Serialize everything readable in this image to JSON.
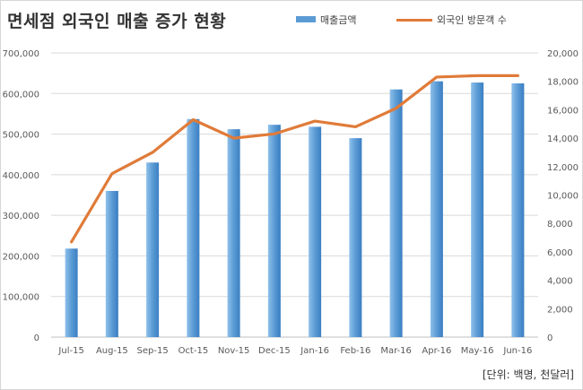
{
  "title": "면세점 외국인 매출 증가 현황",
  "unit_note": "[단위: 백명, 천달러]",
  "legend": {
    "bar_label": "매출금액",
    "line_label": "외국인 방문객 수"
  },
  "colors": {
    "bar": "#5b9bd5",
    "bar_light": "#8ec0ea",
    "bar_dark": "#3a7fc2",
    "line": "#e07b39",
    "grid": "#d9d9d9",
    "axis": "#bfbfbf"
  },
  "chart_data": {
    "type": "bar",
    "categories": [
      "Jul-15",
      "Aug-15",
      "Sep-15",
      "Oct-15",
      "Nov-15",
      "Dec-15",
      "Jan-16",
      "Feb-16",
      "Mar-16",
      "Apr-16",
      "May-16",
      "Jun-16"
    ],
    "series": [
      {
        "name": "매출금액",
        "type": "bar",
        "axis": "left",
        "values": [
          218000,
          360000,
          430000,
          537000,
          512000,
          523000,
          518000,
          490000,
          610000,
          630000,
          627000,
          625000
        ]
      },
      {
        "name": "외국인 방문객 수",
        "type": "line",
        "axis": "right",
        "values": [
          6700,
          11500,
          13000,
          15300,
          14000,
          14300,
          15200,
          14800,
          16100,
          18300,
          18400,
          18400
        ]
      }
    ],
    "y_left": {
      "min": 0,
      "max": 700000,
      "ticks": [
        "0",
        "100,000",
        "200,000",
        "300,000",
        "400,000",
        "500,000",
        "600,000",
        "700,000"
      ]
    },
    "y_right": {
      "min": 0,
      "max": 20000,
      "ticks": [
        "0",
        "2,000",
        "4,000",
        "6,000",
        "8,000",
        "10,000",
        "12,000",
        "14,000",
        "16,000",
        "18,000",
        "20,000"
      ]
    },
    "grid": true,
    "legend_position": "top-right"
  }
}
